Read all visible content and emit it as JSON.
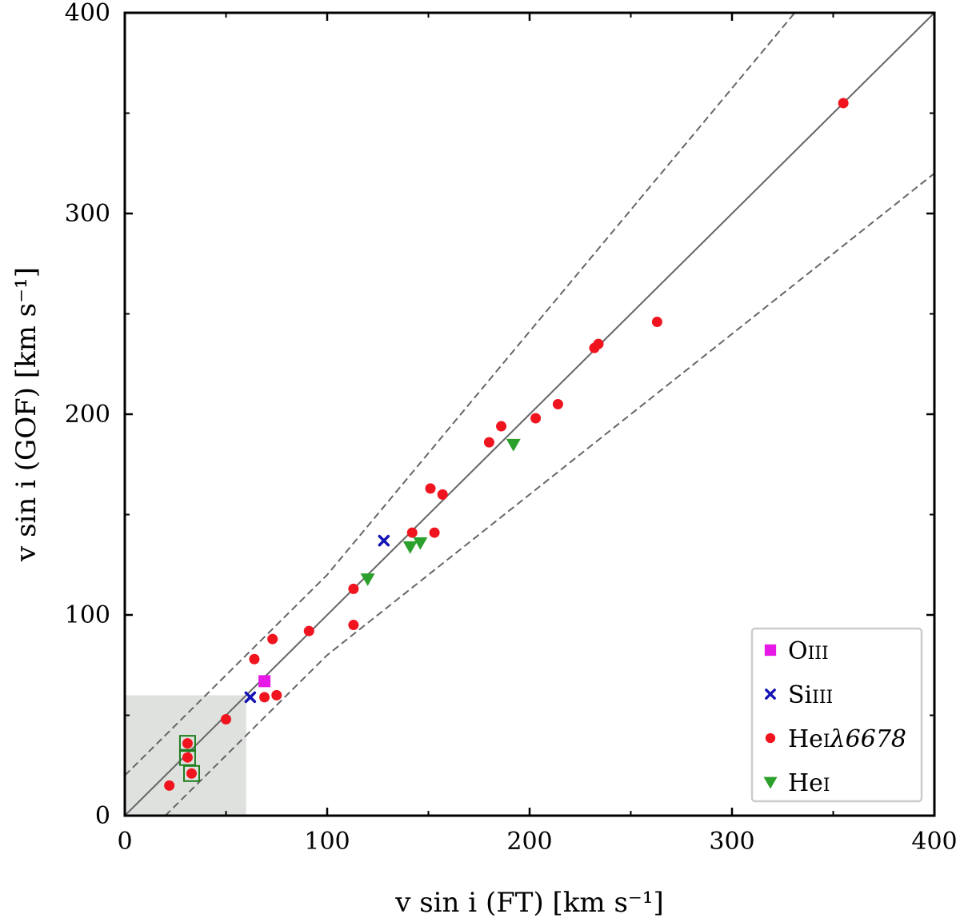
{
  "chart_data": {
    "type": "scatter",
    "xlabel": "v sin i (FT) [km s⁻¹]",
    "ylabel": "v sin i (GOF) [km s⁻¹]",
    "xlim": [
      0,
      400
    ],
    "ylim": [
      0,
      400
    ],
    "x_ticks": [
      "0",
      "100",
      "200",
      "300",
      "400"
    ],
    "y_ticks": [
      "0",
      "100",
      "200",
      "300",
      "400"
    ],
    "grid": false,
    "legend_position": "lower-right",
    "shaded_region": {
      "x": [
        0,
        60
      ],
      "y": [
        0,
        60
      ],
      "color": "#dfe1df"
    },
    "reference_lines": [
      {
        "name": "1:1",
        "style": "solid",
        "color": "#666666",
        "points": [
          [
            0,
            0
          ],
          [
            400,
            400
          ]
        ]
      },
      {
        "name": "upper bound",
        "style": "dashed",
        "color": "#666666",
        "points": [
          [
            0,
            20
          ],
          [
            100,
            120
          ],
          [
            331,
            400
          ]
        ]
      },
      {
        "name": "lower bound",
        "style": "dashed",
        "color": "#666666",
        "points": [
          [
            20,
            0
          ],
          [
            100,
            80
          ],
          [
            400,
            320
          ]
        ]
      }
    ],
    "series": [
      {
        "name": "OIII",
        "label_main": "O",
        "label_sub": "III",
        "marker": "square",
        "color": "#e619e6",
        "points": [
          [
            69,
            67
          ]
        ]
      },
      {
        "name": "SiIII",
        "label_main": "Si",
        "label_sub": "III",
        "marker": "x",
        "color": "#1414b4",
        "points": [
          [
            62,
            59
          ],
          [
            128,
            137
          ]
        ]
      },
      {
        "name": "HeIλ6678",
        "label_main": "He",
        "label_sub": "I",
        "label_suffix": "λ6678",
        "marker": "circle",
        "color": "#f0141e",
        "points": [
          [
            22,
            15
          ],
          [
            31,
            36
          ],
          [
            31,
            29
          ],
          [
            33,
            21
          ],
          [
            50,
            48
          ],
          [
            64,
            78
          ],
          [
            69,
            59
          ],
          [
            73,
            88
          ],
          [
            75,
            60
          ],
          [
            91,
            92
          ],
          [
            113,
            113
          ],
          [
            113,
            95
          ],
          [
            142,
            141
          ],
          [
            151,
            163
          ],
          [
            153,
            141
          ],
          [
            157,
            160
          ],
          [
            180,
            186
          ],
          [
            186,
            194
          ],
          [
            203,
            198
          ],
          [
            214,
            205
          ],
          [
            232,
            233
          ],
          [
            234,
            235
          ],
          [
            263,
            246
          ],
          [
            355,
            355
          ]
        ]
      },
      {
        "name": "HeI",
        "label_main": "He",
        "label_sub": "I",
        "marker": "triangle-down",
        "color": "#2ca02c",
        "points": [
          [
            120,
            118
          ],
          [
            141,
            134
          ],
          [
            146,
            136
          ],
          [
            192,
            185
          ]
        ]
      }
    ],
    "highlighted_points": {
      "marker": "open-square",
      "color": "#1e7d1e",
      "points": [
        [
          31,
          36
        ],
        [
          31,
          29
        ],
        [
          33,
          21
        ]
      ]
    }
  }
}
